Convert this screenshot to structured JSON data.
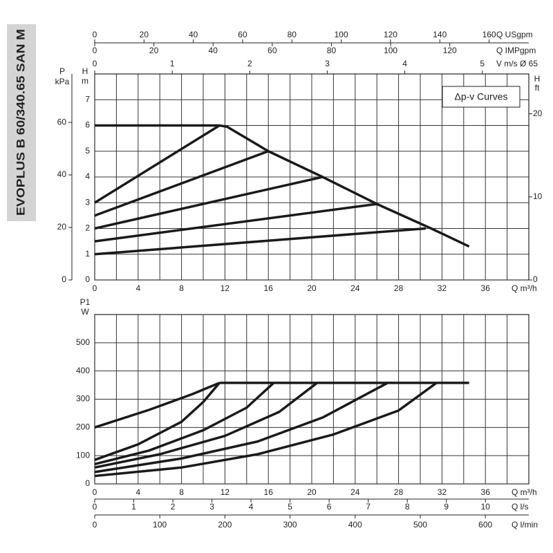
{
  "product": "EVOPLUS B 60/340.65 SAN M",
  "chart_data": [
    {
      "type": "line",
      "annotation": "Δp-v Curves",
      "xlabel": "Q m³/h",
      "xlim": [
        0,
        40
      ],
      "xticks": [
        0,
        4,
        8,
        12,
        16,
        20,
        24,
        28,
        32,
        36
      ],
      "xminorticks": [
        2,
        6,
        10,
        14,
        18,
        22,
        26,
        30,
        34,
        38
      ],
      "ylabel": "H",
      "yunit": "m",
      "ylim": [
        0,
        8
      ],
      "yticks": [
        0,
        1,
        2,
        3,
        4,
        5,
        6,
        7
      ],
      "grid": true,
      "extra_axes": [
        {
          "side": "top",
          "label": "Q USgpm",
          "lim": [
            0,
            176.1
          ],
          "ticks": [
            0,
            20,
            40,
            60,
            80,
            100,
            120,
            140,
            160
          ]
        },
        {
          "side": "top",
          "label": "Q IMPgpm",
          "lim": [
            0,
            146.7
          ],
          "ticks": [
            0,
            20,
            40,
            60,
            80,
            100,
            120
          ]
        },
        {
          "side": "top",
          "label": "V m/s Ø 65",
          "lim": [
            0,
            5.6
          ],
          "ticks": [
            0,
            1,
            2,
            3,
            4,
            5
          ]
        },
        {
          "side": "left",
          "label": "P",
          "unit": "kPa",
          "lim": [
            0,
            78.45
          ],
          "ticks": [
            0,
            20,
            40,
            60
          ]
        },
        {
          "side": "right",
          "label": "H",
          "unit": "ft",
          "lim": [
            0,
            24.8
          ],
          "ticks": [
            0,
            10,
            20
          ]
        }
      ],
      "series": [
        {
          "color": "#1a1a1a",
          "x": [
            0,
            11.5,
            12.2,
            16,
            21,
            26,
            31,
            34.5
          ],
          "values": [
            6,
            6,
            5.95,
            5,
            4,
            2.95,
            2,
            1.3
          ]
        },
        {
          "color": "#1a1a1a",
          "x": [
            0,
            11.5
          ],
          "values": [
            3,
            6
          ]
        },
        {
          "color": "#1a1a1a",
          "x": [
            0,
            16
          ],
          "values": [
            2.5,
            5
          ]
        },
        {
          "color": "#1a1a1a",
          "x": [
            0,
            21
          ],
          "values": [
            2,
            4
          ]
        },
        {
          "color": "#1a1a1a",
          "x": [
            0,
            26
          ],
          "values": [
            1.5,
            2.95
          ]
        },
        {
          "color": "#1a1a1a",
          "x": [
            0,
            30.5
          ],
          "values": [
            1,
            2
          ]
        }
      ]
    },
    {
      "type": "line",
      "xlabel": "Q m³/h",
      "xlim": [
        0,
        40
      ],
      "xticks": [
        0,
        4,
        8,
        12,
        16,
        20,
        24,
        28,
        32,
        36
      ],
      "xminorticks": [
        2,
        6,
        10,
        14,
        18,
        22,
        26,
        30,
        34,
        38
      ],
      "ylabel": "P1",
      "yunit": "W",
      "ylim": [
        0,
        600
      ],
      "yticks": [
        0,
        100,
        200,
        300,
        400,
        500
      ],
      "grid": true,
      "extra_axes": [
        {
          "side": "bottom",
          "label": "Q l/s",
          "lim": [
            0,
            11.11
          ],
          "ticks": [
            0,
            1,
            2,
            3,
            4,
            5,
            6,
            7,
            8,
            9,
            10
          ]
        },
        {
          "side": "bottom",
          "label": "Q l/min",
          "lim": [
            0,
            666.7
          ],
          "ticks": [
            0,
            100,
            200,
            300,
            400,
            500,
            600
          ]
        }
      ],
      "series": [
        {
          "color": "#1a1a1a",
          "x": [
            11.5,
            34.5
          ],
          "values": [
            358,
            358
          ]
        },
        {
          "color": "#1a1a1a",
          "x": [
            0,
            5,
            9,
            11,
            11.5
          ],
          "values": [
            200,
            262,
            318,
            350,
            358
          ]
        },
        {
          "color": "#1a1a1a",
          "x": [
            0,
            4,
            8,
            10,
            11.5
          ],
          "values": [
            85,
            140,
            220,
            290,
            358
          ]
        },
        {
          "color": "#1a1a1a",
          "x": [
            0,
            5,
            10,
            14,
            16.5
          ],
          "values": [
            70,
            118,
            190,
            270,
            358
          ]
        },
        {
          "color": "#1a1a1a",
          "x": [
            0,
            6,
            12,
            17,
            20.5
          ],
          "values": [
            58,
            105,
            170,
            255,
            358
          ]
        },
        {
          "color": "#1a1a1a",
          "x": [
            0,
            8,
            15,
            21,
            27
          ],
          "values": [
            42,
            90,
            150,
            235,
            358
          ]
        },
        {
          "color": "#1a1a1a",
          "x": [
            0,
            8,
            15,
            22,
            28,
            31.5
          ],
          "values": [
            28,
            58,
            105,
            175,
            260,
            358
          ]
        }
      ]
    }
  ]
}
